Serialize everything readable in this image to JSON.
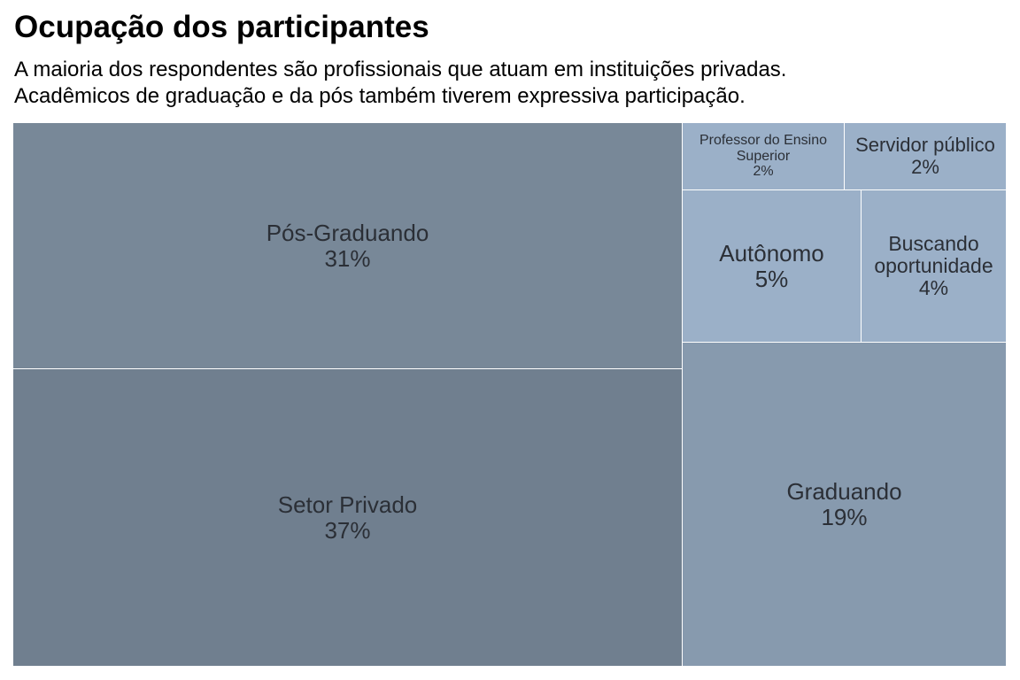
{
  "title": "Ocupação dos participantes",
  "subtitle": {
    "line1": "A maioria dos respondentes são profissionais que atuam em instituições privadas.",
    "line2": "Acadêmicos de graduação e da pós também tiverem expressiva participação."
  },
  "chart_data": {
    "type": "treemap",
    "title": "Ocupação dos participantes",
    "items": [
      {
        "label": "Setor Privado",
        "value": 37,
        "display": "37%",
        "color": "#707f8f"
      },
      {
        "label": "Pós-Graduando",
        "value": 31,
        "display": "31%",
        "color": "#788898"
      },
      {
        "label": "Graduando",
        "value": 19,
        "display": "19%",
        "color": "#879aae"
      },
      {
        "label": "Autônomo",
        "value": 5,
        "display": "5%",
        "color": "#9bb0c8"
      },
      {
        "label": "Buscando oportunidade",
        "value": 4,
        "display": "4%",
        "color": "#9bb0c8"
      },
      {
        "label": "Professor do Ensino Superior",
        "value": 2,
        "display": "2%",
        "color": "#9bb0c8"
      },
      {
        "label": "Servidor público",
        "value": 2,
        "display": "2%",
        "color": "#9bb0c8"
      }
    ]
  }
}
